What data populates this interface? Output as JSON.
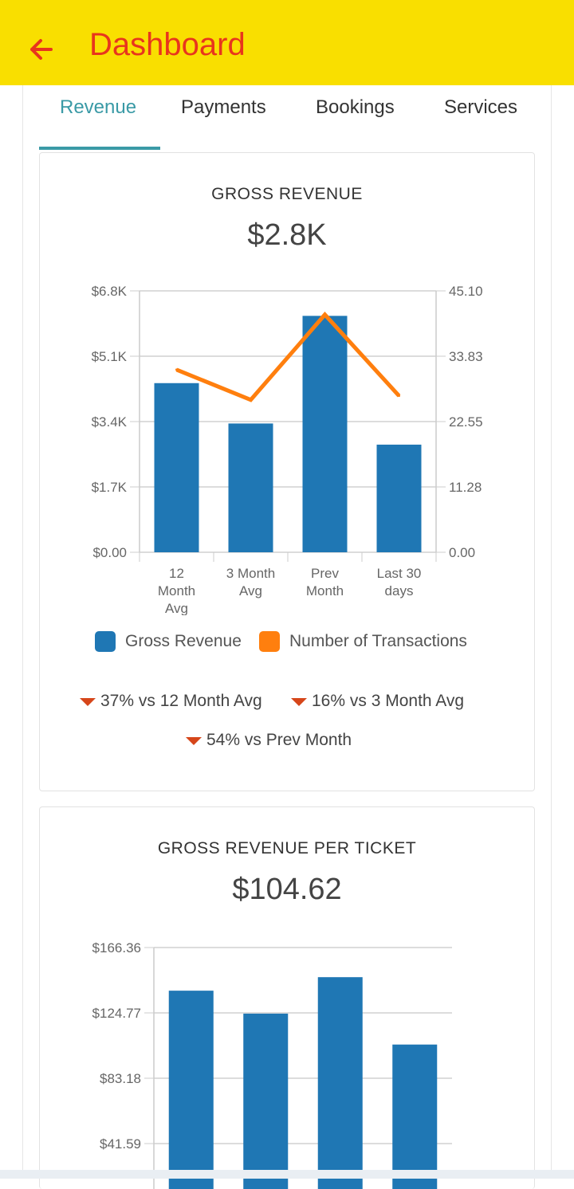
{
  "appbar": {
    "title": "Dashboard"
  },
  "tabs": [
    "Revenue",
    "Payments",
    "Bookings",
    "Services"
  ],
  "colors": {
    "accent": "#3a9aa6",
    "appbar": "#f9df00",
    "title": "#e8351d",
    "bar": "#1f77b4",
    "line": "#ff7f0e",
    "down": "#d6461a"
  },
  "gross_revenue": {
    "title": "GROSS REVENUE",
    "value": "$2.8K",
    "comparisons": [
      "37% vs 12 Month Avg",
      "16% vs 3 Month Avg",
      "54% vs Prev Month"
    ]
  },
  "per_ticket": {
    "title": "GROSS REVENUE PER TICKET",
    "value": "$104.62"
  },
  "chart_data": [
    {
      "type": "bar",
      "categories": [
        [
          "12",
          "Month",
          "Avg"
        ],
        [
          "3 Month",
          "Avg"
        ],
        [
          "Prev",
          "Month"
        ],
        [
          "Last 30",
          "days"
        ]
      ],
      "series": [
        {
          "name": "Gross Revenue",
          "axis": "left",
          "type": "bar",
          "values": [
            4400,
            3350,
            6150,
            2800
          ]
        },
        {
          "name": "Number of Transactions",
          "axis": "right",
          "type": "line",
          "values": [
            31.5,
            26.3,
            41.0,
            27.0
          ]
        }
      ],
      "ylim": [
        0,
        6800
      ],
      "yticks": [
        "$0.00",
        "$1.7K",
        "$3.4K",
        "$5.1K",
        "$6.8K"
      ],
      "y2lim": [
        0,
        45.1
      ],
      "y2ticks": [
        "0.00",
        "11.28",
        "22.55",
        "33.83",
        "45.10"
      ],
      "legend": "bottom",
      "grid": true
    },
    {
      "type": "bar",
      "series": [
        {
          "values": [
            138.9,
            124.3,
            147.5,
            104.62
          ]
        }
      ],
      "ylim": [
        0,
        166.36
      ],
      "yticks": [
        "$41.59",
        "$83.18",
        "$124.77",
        "$166.36"
      ],
      "grid": true
    }
  ]
}
